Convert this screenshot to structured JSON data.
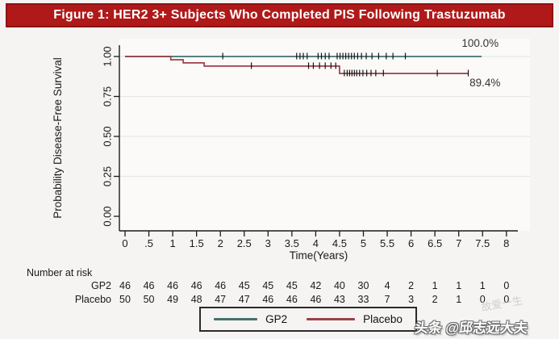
{
  "header": {
    "title": "Figure 1: HER2 3+ Subjects Who Completed PIS Following Trastuzumab"
  },
  "chart_data": {
    "type": "line",
    "subtype": "kaplan_meier_step",
    "title": "",
    "xlabel": "Time(Years)",
    "ylabel": "Probability Disease-Free Survival",
    "x_tick_labels": [
      "0",
      ".5",
      "1",
      "1.5",
      "2",
      "2.5",
      "3",
      "3.5",
      "4",
      "4.5",
      "5",
      "5.5",
      "6",
      "6.5",
      "7",
      "7.5",
      "8"
    ],
    "x_tick_values": [
      0,
      0.5,
      1,
      1.5,
      2,
      2.5,
      3,
      3.5,
      4,
      4.5,
      5,
      5.5,
      6,
      6.5,
      7,
      7.5,
      8
    ],
    "y_tick_labels": [
      "1.00",
      "0.75",
      "0.50",
      "0.25",
      "0.00"
    ],
    "y_tick_values": [
      1.0,
      0.75,
      0.5,
      0.25,
      0.0
    ],
    "xlim": [
      0,
      8.35
    ],
    "ylim": [
      0,
      1.0
    ],
    "grid": "faint horizontal gridlines at y ticks",
    "legend_position": "bottom-center-boxed",
    "series": [
      {
        "name": "GP2",
        "color": "#45706e",
        "final_value_label": "100.0%",
        "steps": [
          [
            0,
            1.0
          ],
          [
            7.48,
            1.0
          ]
        ],
        "censors": [
          [
            2.05,
            1.0
          ],
          [
            3.6,
            1.0
          ],
          [
            3.67,
            1.0
          ],
          [
            3.74,
            1.0
          ],
          [
            3.82,
            1.0
          ],
          [
            4.05,
            1.0
          ],
          [
            4.12,
            1.0
          ],
          [
            4.2,
            1.0
          ],
          [
            4.28,
            1.0
          ],
          [
            4.45,
            1.0
          ],
          [
            4.51,
            1.0
          ],
          [
            4.57,
            1.0
          ],
          [
            4.63,
            1.0
          ],
          [
            4.69,
            1.0
          ],
          [
            4.75,
            1.0
          ],
          [
            4.81,
            1.0
          ],
          [
            4.88,
            1.0
          ],
          [
            4.96,
            1.0
          ],
          [
            5.06,
            1.0
          ],
          [
            5.18,
            1.0
          ],
          [
            5.32,
            1.0
          ],
          [
            5.48,
            1.0
          ],
          [
            5.62,
            1.0
          ],
          [
            5.88,
            1.0
          ]
        ]
      },
      {
        "name": "Placebo",
        "color": "#9a4048",
        "final_value_label": "89.4%",
        "steps": [
          [
            0,
            1.0
          ],
          [
            0.96,
            1.0
          ],
          [
            0.96,
            0.98
          ],
          [
            1.22,
            0.98
          ],
          [
            1.22,
            0.96
          ],
          [
            1.66,
            0.96
          ],
          [
            1.66,
            0.94
          ],
          [
            4.5,
            0.94
          ],
          [
            4.5,
            0.894
          ],
          [
            7.2,
            0.894
          ]
        ],
        "censors": [
          [
            2.65,
            0.94
          ],
          [
            3.85,
            0.94
          ],
          [
            3.95,
            0.94
          ],
          [
            4.08,
            0.94
          ],
          [
            4.2,
            0.94
          ],
          [
            4.32,
            0.94
          ],
          [
            4.42,
            0.94
          ],
          [
            4.6,
            0.894
          ],
          [
            4.66,
            0.894
          ],
          [
            4.71,
            0.894
          ],
          [
            4.76,
            0.894
          ],
          [
            4.81,
            0.894
          ],
          [
            4.86,
            0.894
          ],
          [
            4.92,
            0.894
          ],
          [
            4.99,
            0.894
          ],
          [
            5.07,
            0.894
          ],
          [
            5.16,
            0.894
          ],
          [
            5.26,
            0.894
          ],
          [
            5.42,
            0.894
          ],
          [
            6.55,
            0.894
          ],
          [
            7.2,
            0.894
          ]
        ]
      }
    ],
    "annotations": [
      {
        "text": "100.0%",
        "t": 7.45,
        "p": 1.0,
        "dy": -12
      },
      {
        "text": "89.4%",
        "t": 7.55,
        "p": 0.894,
        "dy": 16
      }
    ]
  },
  "risk_table": {
    "title": "Number at risk",
    "time_points": [
      0,
      0.5,
      1,
      1.5,
      2,
      2.5,
      3,
      3.5,
      4,
      4.5,
      5,
      5.5,
      6,
      6.5,
      7,
      7.5,
      8
    ],
    "rows": [
      {
        "label": "GP2",
        "values": [
          "46",
          "46",
          "46",
          "46",
          "46",
          "45",
          "45",
          "45",
          "42",
          "40",
          "30",
          "4",
          "2",
          "1",
          "1",
          "1",
          "0"
        ]
      },
      {
        "label": "Placebo",
        "values": [
          "50",
          "50",
          "49",
          "48",
          "47",
          "47",
          "46",
          "46",
          "46",
          "43",
          "33",
          "7",
          "3",
          "2",
          "1",
          "0",
          "0"
        ]
      }
    ]
  },
  "legend": {
    "items": [
      {
        "label": "GP2",
        "color": "#45706e"
      },
      {
        "label": "Placebo",
        "color": "#9a4048"
      }
    ]
  },
  "watermark": {
    "main": "头条 @邱志远大夫",
    "faint": "故爱一生"
  }
}
